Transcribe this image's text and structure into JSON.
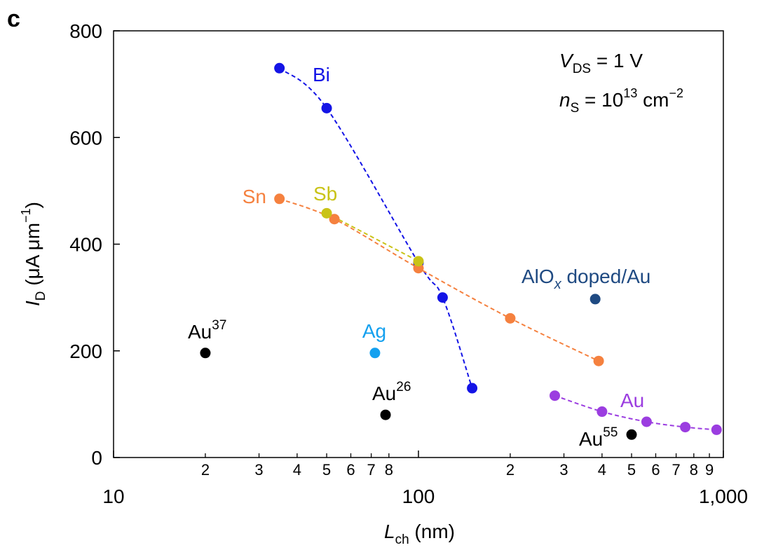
{
  "panel_label": "c",
  "chart_data": {
    "type": "scatter",
    "x_scale": "log",
    "xlim": [
      10,
      1000
    ],
    "ylim": [
      0,
      800
    ],
    "grid": false,
    "xlabel": {
      "main": "L",
      "sub": "ch",
      "tail": " (nm)"
    },
    "ylabel": {
      "main": "I",
      "sub": "D",
      "tail": " (μA μm",
      "sup": "−1",
      "close": ")"
    },
    "y_ticks": [
      0,
      200,
      400,
      600,
      800
    ],
    "x_major_ticks": [
      {
        "value": 10,
        "label": "10"
      },
      {
        "value": 100,
        "label": "100"
      },
      {
        "value": 1000,
        "label": "1,000"
      }
    ],
    "x_minor_ticks": [
      {
        "value": 20,
        "label": "2"
      },
      {
        "value": 30,
        "label": "3"
      },
      {
        "value": 40,
        "label": "4"
      },
      {
        "value": 50,
        "label": "5"
      },
      {
        "value": 60,
        "label": "6"
      },
      {
        "value": 70,
        "label": "7"
      },
      {
        "value": 80,
        "label": "8"
      },
      {
        "value": 200,
        "label": "2"
      },
      {
        "value": 300,
        "label": "3"
      },
      {
        "value": 400,
        "label": "4"
      },
      {
        "value": 500,
        "label": "5"
      },
      {
        "value": 600,
        "label": "6"
      },
      {
        "value": 700,
        "label": "7"
      },
      {
        "value": 800,
        "label": "8"
      },
      {
        "value": 900,
        "label": "9"
      }
    ],
    "conditions": {
      "vds": {
        "main": "V",
        "sub": "DS",
        "tail": " = 1 V"
      },
      "ns": {
        "main": "n",
        "sub": "S",
        "mid": " = 10",
        "sup": "13",
        "tail": " cm",
        "sup2": "−2"
      }
    },
    "series": [
      {
        "name": "Bi",
        "color": "#1414e6",
        "dashed": true,
        "points": [
          [
            35,
            730
          ],
          [
            50,
            655
          ],
          [
            100,
            365
          ],
          [
            120,
            300
          ],
          [
            150,
            130
          ]
        ]
      },
      {
        "name": "Sn",
        "color": "#f5813f",
        "dashed": true,
        "points": [
          [
            35,
            485
          ],
          [
            53,
            447
          ],
          [
            100,
            355
          ],
          [
            200,
            261
          ],
          [
            390,
            181
          ]
        ]
      },
      {
        "name": "Sb",
        "color": "#c9c317",
        "dashed": true,
        "points": [
          [
            50,
            458
          ],
          [
            100,
            368
          ]
        ]
      },
      {
        "name": "Au",
        "color": "#9b3de0",
        "dashed": true,
        "points": [
          [
            280,
            116
          ],
          [
            400,
            86
          ],
          [
            560,
            67
          ],
          [
            750,
            57
          ],
          [
            950,
            52
          ]
        ]
      },
      {
        "name": "Ag",
        "color": "#13a0ef",
        "dashed": false,
        "points": [
          [
            72,
            196
          ]
        ]
      },
      {
        "name": "AlO",
        "sub": "x",
        "tail": " doped/Au",
        "color": "#1f4a82",
        "dashed": false,
        "points": [
          [
            380,
            297
          ]
        ]
      },
      {
        "name": "Au",
        "sup": "37",
        "color": "#000000",
        "dashed": false,
        "points": [
          [
            20,
            196
          ]
        ]
      },
      {
        "name": "Au",
        "sup": "26",
        "color": "#000000",
        "dashed": false,
        "points": [
          [
            78,
            80
          ]
        ]
      },
      {
        "name": "Au",
        "sup": "55",
        "color": "#000000",
        "dashed": false,
        "points": [
          [
            500,
            43
          ]
        ]
      }
    ]
  }
}
